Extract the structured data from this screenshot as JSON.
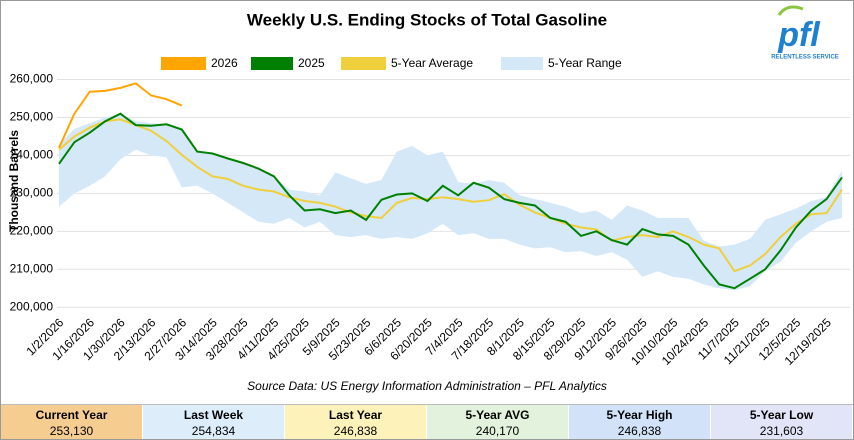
{
  "chart_data": {
    "type": "line",
    "title": "Weekly U.S. Ending Stocks of Total Gasoline",
    "y_label": "Thousand Barrels",
    "source": "Source Data: US Energy Information Administration – PFL Analytics",
    "logo": {
      "name": "pfl",
      "tagline": "RELENTLESS SERVICE"
    },
    "categories": [
      "1/2/2026",
      null,
      "1/16/2026",
      null,
      "1/30/2026",
      null,
      "2/13/2026",
      null,
      "2/27/2026",
      null,
      "3/14/2025",
      null,
      "3/28/2025",
      null,
      "4/11/2025",
      null,
      "4/25/2025",
      null,
      "5/9/2025",
      null,
      "5/23/2025",
      null,
      "6/6/2025",
      null,
      "6/20/2025",
      null,
      "7/4/2025",
      null,
      "7/18/2025",
      null,
      "8/1/2025",
      null,
      "8/15/2025",
      null,
      "8/29/2025",
      null,
      "9/12/2025",
      null,
      "9/26/2025",
      null,
      "10/10/2025",
      null,
      "10/24/2025",
      null,
      "11/7/2025",
      null,
      "11/21/2025",
      null,
      "12/5/2025",
      null,
      "12/19/2025",
      null
    ],
    "series": [
      {
        "name": "2026",
        "color": "#ffa500",
        "values": [
          242000,
          251000,
          256800,
          257000,
          257800,
          259000,
          255800,
          254834,
          253130,
          null,
          null,
          null,
          null,
          null,
          null,
          null,
          null,
          null,
          null,
          null,
          null,
          null,
          null,
          null,
          null,
          null,
          null,
          null,
          null,
          null,
          null,
          null,
          null,
          null,
          null,
          null,
          null,
          null,
          null,
          null,
          null,
          null,
          null,
          null,
          null,
          null,
          null,
          null,
          null,
          null,
          null,
          null
        ]
      },
      {
        "name": "2025",
        "color": "#008000",
        "values": [
          237800,
          243500,
          246000,
          249000,
          251000,
          248000,
          247800,
          248200,
          246838,
          241000,
          240500,
          239200,
          238000,
          236500,
          234500,
          229500,
          225500,
          225800,
          224800,
          225500,
          223000,
          228300,
          229700,
          230000,
          228000,
          232000,
          229500,
          232800,
          231500,
          228500,
          227500,
          226800,
          223500,
          222500,
          218800,
          220000,
          217700,
          216500,
          220600,
          219200,
          218800,
          216500,
          211000,
          206000,
          205000,
          207500,
          210000,
          215000,
          221000,
          225500,
          228500,
          234200
        ]
      },
      {
        "name": "5-Year Average",
        "color": "#f0cf3c",
        "values": [
          241500,
          245000,
          247300,
          249000,
          249500,
          248000,
          246500,
          243800,
          240170,
          237000,
          234500,
          233800,
          232000,
          231000,
          230500,
          229000,
          228000,
          227500,
          226500,
          225000,
          224000,
          223500,
          227500,
          228800,
          228500,
          229000,
          228500,
          227800,
          228200,
          229800,
          227000,
          225000,
          223500,
          222000,
          221000,
          220500,
          217500,
          218500,
          219000,
          218500,
          220000,
          218500,
          216500,
          215500,
          209500,
          211000,
          214000,
          218500,
          222000,
          224500,
          224800,
          231000
        ]
      },
      {
        "name": "5-Year Range",
        "color": "#d4e8f8",
        "high": [
          243000,
          247000,
          248500,
          250000,
          251000,
          249000,
          248500,
          248200,
          246838,
          241000,
          240500,
          239200,
          238000,
          236500,
          234500,
          231000,
          230500,
          229500,
          235500,
          234000,
          232500,
          233500,
          241000,
          242500,
          240000,
          241000,
          233000,
          232500,
          233500,
          232800,
          229500,
          228500,
          227500,
          226500,
          224800,
          225500,
          223000,
          226800,
          225500,
          223500,
          223500,
          223500,
          217500,
          216000,
          216500,
          218000,
          223000,
          224500,
          226000,
          228000,
          229000,
          236000
        ],
        "low": [
          226500,
          230000,
          232000,
          234500,
          239000,
          241500,
          240000,
          239500,
          231603,
          232000,
          230000,
          227500,
          225000,
          222500,
          222000,
          223500,
          221000,
          222500,
          219000,
          218500,
          219000,
          218000,
          218500,
          218000,
          219500,
          222000,
          219000,
          219500,
          218000,
          218000,
          216500,
          215500,
          215800,
          214500,
          214800,
          213500,
          214500,
          212500,
          208000,
          209500,
          208000,
          207500,
          206000,
          205000,
          204500,
          205500,
          209500,
          212000,
          217000,
          220000,
          222500,
          223500
        ]
      }
    ],
    "ylim": [
      199000,
      267000
    ],
    "yticks": [
      {
        "value": 200000,
        "label": "200,000"
      },
      {
        "value": 210000,
        "label": "210,000"
      },
      {
        "value": 220000,
        "label": "220,000"
      },
      {
        "value": 230000,
        "label": "230,000"
      },
      {
        "value": 240000,
        "label": "240,000"
      },
      {
        "value": 250000,
        "label": "250,000"
      },
      {
        "value": 260000,
        "label": "260,000"
      }
    ],
    "grid": true
  },
  "summary": [
    {
      "label": "Current Year",
      "value": "253,130",
      "color": "#f6cd90"
    },
    {
      "label": "Last Week",
      "value": "254,834",
      "color": "#deedfa"
    },
    {
      "label": "Last Year",
      "value": "246,838",
      "color": "#fdf2ba"
    },
    {
      "label": "5-Year AVG",
      "value": "240,170",
      "color": "#e2f2dc"
    },
    {
      "label": "5-Year High",
      "value": "246,838",
      "color": "#d2e2f8"
    },
    {
      "label": "5-Year Low",
      "value": "231,603",
      "color": "#e2e4f8"
    }
  ]
}
